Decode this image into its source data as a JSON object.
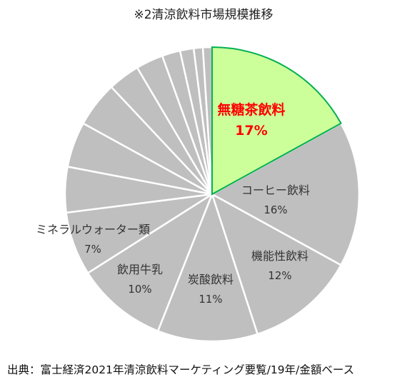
{
  "chart_data": {
    "type": "pie",
    "title": "※2清涼飲料市場規模推移",
    "source": "出典：富士経済2021年清涼飲料マーケティング要覧/19年/金額ベース",
    "start_angle_deg": 0,
    "direction": "clockwise",
    "slices": [
      {
        "label": "無糖茶飲料",
        "value": 17,
        "value_label": "17%",
        "color": "#ccff99",
        "highlight": true
      },
      {
        "label": "コーヒー飲料",
        "value": 16,
        "value_label": "16%",
        "color": "#bfbfbf"
      },
      {
        "label": "機能性飲料",
        "value": 12,
        "value_label": "12%",
        "color": "#bfbfbf"
      },
      {
        "label": "炭酸飲料",
        "value": 11,
        "value_label": "11%",
        "color": "#bfbfbf"
      },
      {
        "label": "飲用牛乳",
        "value": 10,
        "value_label": "10%",
        "color": "#bfbfbf"
      },
      {
        "label": "ミネラルウォーター類",
        "value": 7,
        "value_label": "7%",
        "color": "#bfbfbf"
      },
      {
        "label": "",
        "value": 5,
        "value_label": "",
        "color": "#bfbfbf"
      },
      {
        "label": "",
        "value": 5,
        "value_label": "",
        "color": "#bfbfbf"
      },
      {
        "label": "",
        "value": 5,
        "value_label": "",
        "color": "#bfbfbf"
      },
      {
        "label": "",
        "value": 3.5,
        "value_label": "",
        "color": "#bfbfbf"
      },
      {
        "label": "",
        "value": 3,
        "value_label": "",
        "color": "#bfbfbf"
      },
      {
        "label": "",
        "value": 2,
        "value_label": "",
        "color": "#bfbfbf"
      },
      {
        "label": "",
        "value": 1.5,
        "value_label": "",
        "color": "#bfbfbf"
      },
      {
        "label": "",
        "value": 1,
        "value_label": "",
        "color": "#bfbfbf"
      },
      {
        "label": "",
        "value": 1,
        "value_label": "",
        "color": "#bfbfbf"
      }
    ],
    "highlight_border_color": "#00b050",
    "slice_border_color": "#ffffff"
  }
}
